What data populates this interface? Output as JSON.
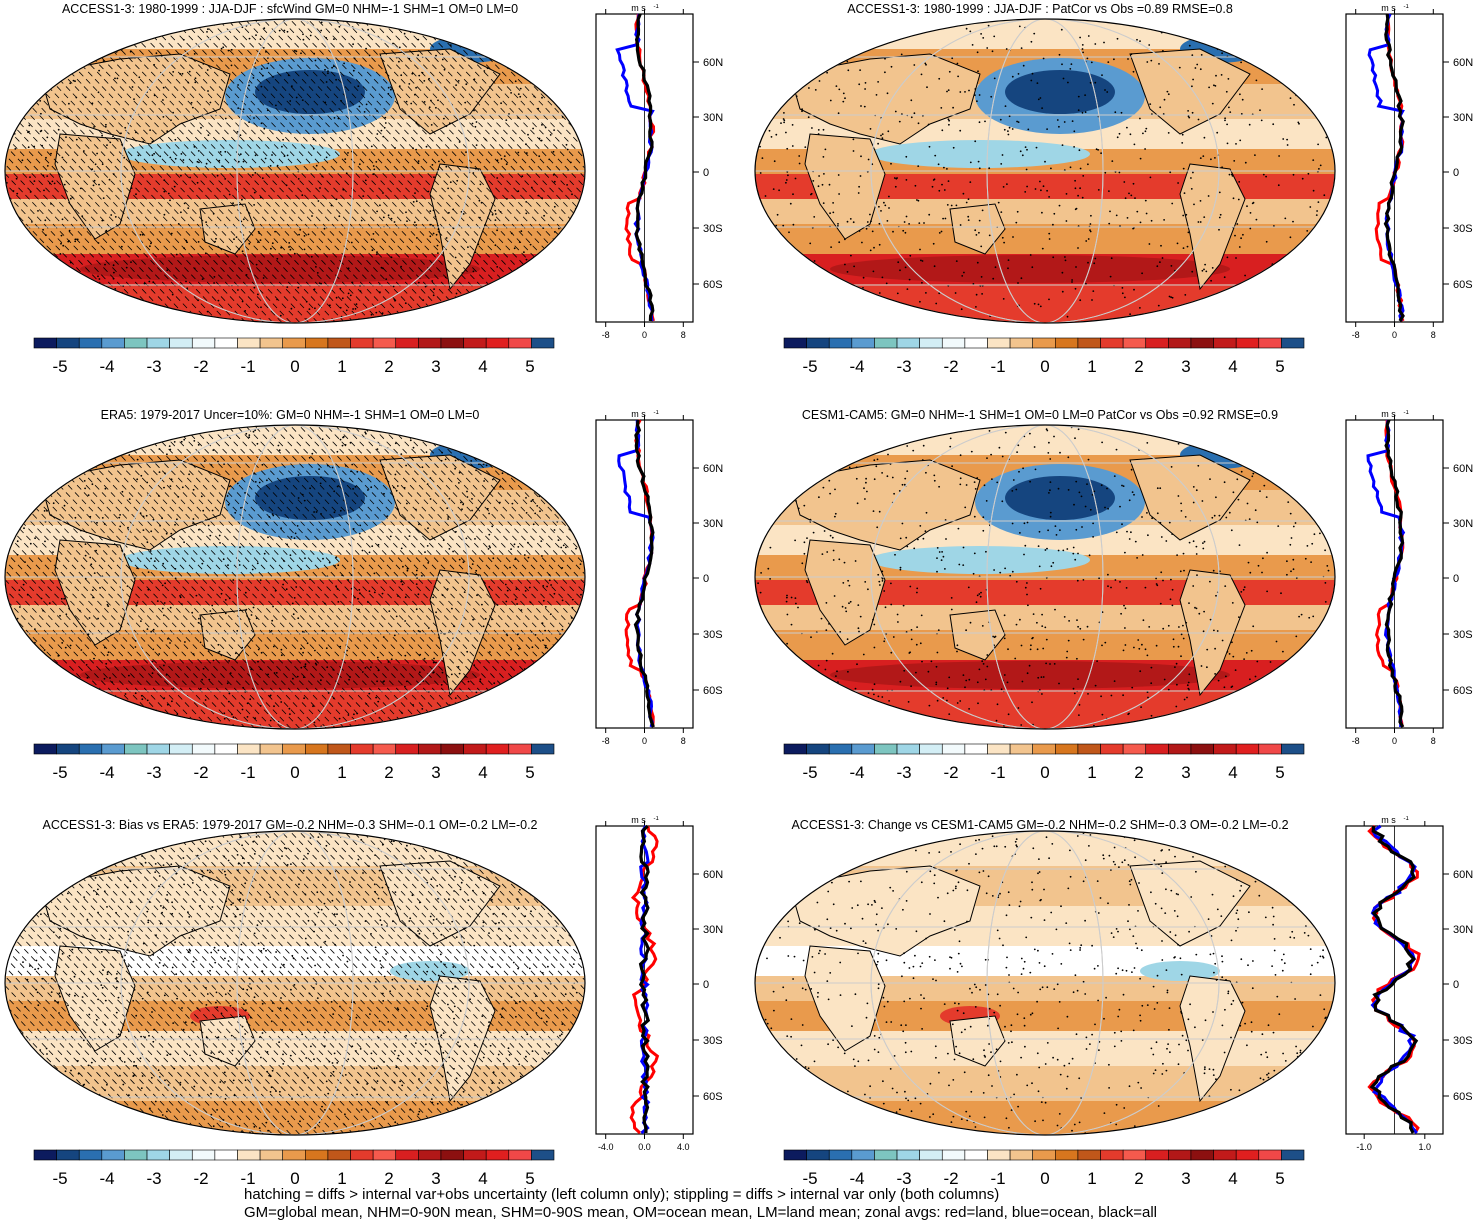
{
  "panels": [
    {
      "id": "p1",
      "title": "ACCESS1-3: 1980-1999 : JJA-DJF : sfcWind GM=0 NHM=-1 SHM=1 OM=0 LM=0",
      "xticks": [
        "-8",
        "0",
        "8"
      ],
      "xrange": [
        -10,
        10
      ],
      "hatch": true,
      "bias": false
    },
    {
      "id": "p2",
      "title": "ACCESS1-3: 1980-1999 : JJA-DJF : PatCor vs Obs =0.89 RMSE=0.8",
      "xticks": [
        "-8",
        "0",
        "8"
      ],
      "xrange": [
        -10,
        10
      ],
      "hatch": false,
      "bias": false
    },
    {
      "id": "p3",
      "title": "ERA5: 1979-2017 Uncer=10%: GM=0 NHM=-1 SHM=1 OM=0 LM=0",
      "xticks": [
        "-8",
        "0",
        "8"
      ],
      "xrange": [
        -10,
        10
      ],
      "hatch": true,
      "bias": false
    },
    {
      "id": "p4",
      "title": "CESM1-CAM5: GM=0 NHM=-1 SHM=1 OM=0 LM=0 PatCor vs Obs =0.92 RMSE=0.9",
      "xticks": [
        "-8",
        "0",
        "8"
      ],
      "xrange": [
        -10,
        10
      ],
      "hatch": false,
      "bias": false
    },
    {
      "id": "p5",
      "title": "ACCESS1-3: Bias vs ERA5: 1979-2017 GM=-0.2 NHM=-0.3 SHM=-0.1 OM=-0.2 LM=-0.2",
      "xticks": [
        "-4.0",
        "0.0",
        "4.0"
      ],
      "xrange": [
        -5,
        5
      ],
      "hatch": true,
      "bias": true
    },
    {
      "id": "p6",
      "title": "ACCESS1-3: Change vs CESM1-CAM5 GM=-0.2 NHM=-0.2 SHM=-0.3 OM=-0.2 LM=-0.2",
      "xticks": [
        "-1.0",
        "1.0"
      ],
      "xrange": [
        -1.6,
        1.6
      ],
      "hatch": false,
      "bias": true
    }
  ],
  "zonal_unit": "m s",
  "zonal_unit_exp": "-1",
  "lat_labels": [
    "60N",
    "30N",
    "0",
    "30S",
    "60S"
  ],
  "colorbar": {
    "labels": [
      "-5",
      "-4",
      "-3",
      "-2",
      "-1",
      "0",
      "1",
      "2",
      "3",
      "4",
      "5"
    ],
    "colors": [
      "#0c1b5e",
      "#15457f",
      "#2a6fb0",
      "#5a9bd0",
      "#7dc5c0",
      "#9fd6e6",
      "#d3eef5",
      "#f2fafc",
      "#ffffff",
      "#fbe4c4",
      "#f2c48e",
      "#e99a4c",
      "#d7761e",
      "#c0571a",
      "#e43b2c",
      "#f55a4d",
      "#d81f20",
      "#b21818",
      "#8c1010",
      "#c21a1a",
      "#e01f1f",
      "#f04848",
      "#1d4f88"
    ]
  },
  "footer": [
    "hatching = diffs > internal var+obs uncertainty (left column only); stippling = diffs > internal var only (both columns)",
    "GM=global mean, NHM=0-90N mean, SHM=0-90S mean, OM=ocean mean, LM=land mean; zonal avgs: red=land, blue=ocean, black=all"
  ],
  "series_colors": {
    "land": "#ff0000",
    "ocean": "#0000ff",
    "all": "#000000"
  }
}
